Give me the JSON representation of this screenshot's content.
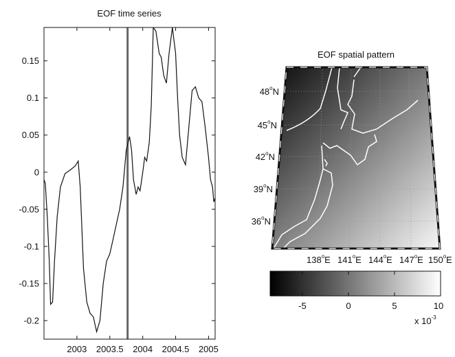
{
  "chart_data": [
    {
      "type": "line",
      "title": "EOF time series",
      "xlabel": "",
      "ylabel": "",
      "xlim": [
        2002.5,
        2005.1
      ],
      "ylim": [
        -0.225,
        0.195
      ],
      "x_ticks": [
        "2003",
        "2003.5",
        "2004",
        "2004.5",
        "2005"
      ],
      "x_tick_values": [
        2003,
        2003.5,
        2004,
        2004.5,
        2005
      ],
      "y_ticks": [
        "0.15",
        "0.1",
        "0.05",
        "0",
        "-0.05",
        "-0.1",
        "-0.15",
        "-0.2"
      ],
      "y_tick_values": [
        0.15,
        0.1,
        0.05,
        0,
        -0.05,
        -0.1,
        -0.15,
        -0.2
      ],
      "vertical_line_x": 2003.77,
      "grid": false,
      "series": [
        {
          "x": [
            2002.5,
            2002.52,
            2002.55,
            2002.58,
            2002.6,
            2002.63,
            2002.66,
            2002.7,
            2002.75,
            2002.82,
            2002.9,
            2002.97,
            2003.0,
            2003.02,
            2003.05,
            2003.1,
            2003.15,
            2003.2,
            2003.25,
            2003.3,
            2003.35,
            2003.4,
            2003.45,
            2003.5,
            2003.55,
            2003.6,
            2003.65,
            2003.7,
            2003.75,
            2003.8,
            2003.83,
            2003.86,
            2003.9,
            2003.93,
            2003.96,
            2004.0,
            2004.03,
            2004.06,
            2004.1,
            2004.13,
            2004.16,
            2004.2,
            2004.25,
            2004.28,
            2004.32,
            2004.36,
            2004.4,
            2004.45,
            2004.5,
            2004.53,
            2004.56,
            2004.6,
            2004.65,
            2004.7,
            2004.75,
            2004.8,
            2004.85,
            2004.9,
            2004.95,
            2005.0,
            2005.03,
            2005.06,
            2005.08,
            2005.1
          ],
          "values": [
            -0.01,
            -0.015,
            -0.06,
            -0.12,
            -0.178,
            -0.175,
            -0.12,
            -0.06,
            -0.02,
            -0.002,
            0.003,
            0.008,
            0.012,
            0.015,
            -0.02,
            -0.13,
            -0.175,
            -0.19,
            -0.195,
            -0.215,
            -0.2,
            -0.15,
            -0.12,
            -0.11,
            -0.09,
            -0.07,
            -0.05,
            -0.02,
            0.03,
            0.048,
            0.03,
            -0.01,
            -0.03,
            -0.02,
            -0.025,
            0.0,
            0.02,
            0.015,
            0.04,
            0.09,
            0.195,
            0.19,
            0.16,
            0.155,
            0.13,
            0.12,
            0.16,
            0.195,
            0.16,
            0.1,
            0.05,
            0.02,
            0.01,
            0.06,
            0.11,
            0.115,
            0.1,
            0.095,
            0.06,
            0.02,
            -0.01,
            -0.02,
            -0.04,
            -0.035
          ]
        }
      ]
    },
    {
      "type": "heatmap",
      "title": "EOF spatial pattern",
      "x_ticks": [
        "138",
        "141",
        "144",
        "147",
        "150"
      ],
      "x_tick_suffix": "E",
      "y_ticks": [
        "48",
        "45",
        "42",
        "39",
        "36"
      ],
      "y_tick_suffix": "N",
      "degree_symbol": "o",
      "colorbar_ticks": [
        "-5",
        "0",
        "5",
        "10"
      ],
      "colorbar_tick_values": [
        -5,
        0,
        5,
        10
      ],
      "colorbar_range": [
        -8.5,
        10
      ],
      "colorbar_scale_base": "x 10",
      "colorbar_scale_exp": "-3",
      "colormap": "gray",
      "grid": true,
      "colors": {
        "dark": "#0b0b0b",
        "light": "#f6f6f6",
        "coast": "#ffffff"
      }
    }
  ]
}
